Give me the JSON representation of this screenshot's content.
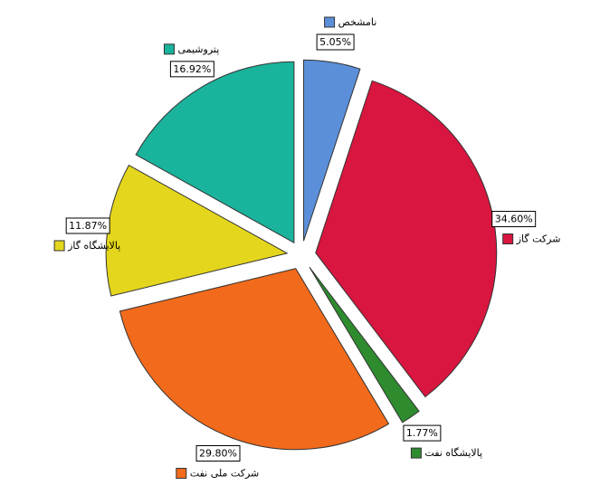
{
  "chart_data": {
    "type": "pie",
    "categories": [
      "نامشخص",
      "شرکت گاز",
      "پالایشگاه نفت",
      "شرکت ملی نفت",
      "پالایشگاه گاز",
      "پتروشیمی"
    ],
    "values": [
      5.05,
      34.6,
      1.77,
      29.8,
      11.87,
      16.92
    ],
    "value_labels": [
      "5.05%",
      "34.60%",
      "1.77%",
      "29.80%",
      "11.87%",
      "16.92%"
    ],
    "colors": [
      "#5b8fd9",
      "#d8163f",
      "#2e8b2e",
      "#f26a1b",
      "#e4d61c",
      "#1ab39b"
    ],
    "exploded": true
  }
}
